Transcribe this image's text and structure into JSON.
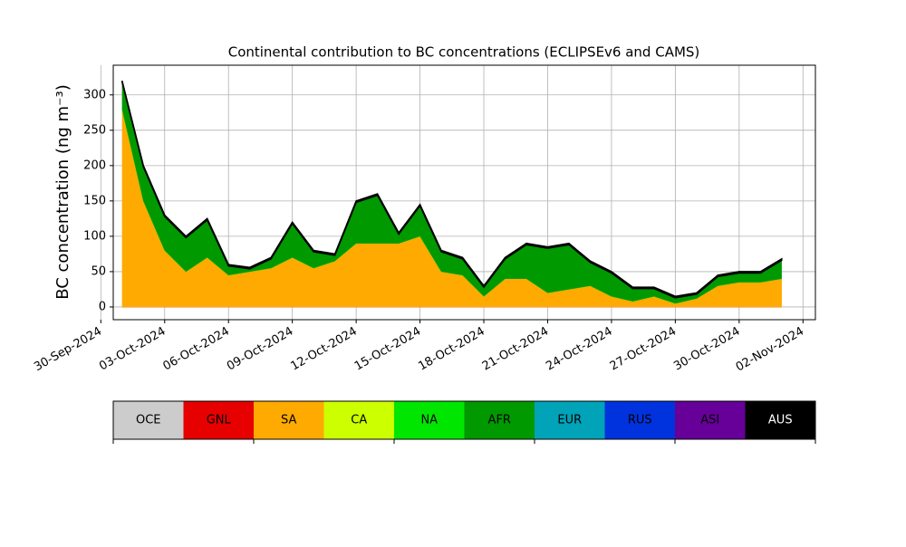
{
  "chart_data": {
    "type": "stacked_area",
    "title": "Continental contribution to BC concentrations (ECLIPSEv6 and CAMS)",
    "ylabel": "BC concentration (ng m⁻³)",
    "x": [
      "2024-10-01",
      "2024-10-02",
      "2024-10-03",
      "2024-10-04",
      "2024-10-05",
      "2024-10-06",
      "2024-10-07",
      "2024-10-08",
      "2024-10-09",
      "2024-10-10",
      "2024-10-11",
      "2024-10-12",
      "2024-10-13",
      "2024-10-14",
      "2024-10-15",
      "2024-10-16",
      "2024-10-17",
      "2024-10-18",
      "2024-10-19",
      "2024-10-20",
      "2024-10-21",
      "2024-10-22",
      "2024-10-23",
      "2024-10-24",
      "2024-10-25",
      "2024-10-26",
      "2024-10-27",
      "2024-10-28",
      "2024-10-29",
      "2024-10-30",
      "2024-10-31",
      "2024-11-01"
    ],
    "series": [
      {
        "name": "OCE",
        "color": "#cccccc",
        "values": [
          0,
          0,
          0,
          0,
          0,
          0,
          0,
          0,
          0,
          0,
          0,
          0,
          0,
          0,
          0,
          0,
          0,
          0,
          0,
          0,
          0,
          0,
          0,
          0,
          0,
          0,
          0,
          0,
          0,
          0,
          0,
          0
        ]
      },
      {
        "name": "GNL",
        "color": "#e60000",
        "values": [
          0,
          0,
          0,
          0,
          0,
          0,
          0,
          0,
          0,
          0,
          0,
          0,
          0,
          0,
          0,
          0,
          0,
          0,
          0,
          0,
          0,
          0,
          0,
          0,
          0,
          0,
          0,
          0,
          0,
          0,
          0,
          0
        ]
      },
      {
        "name": "SA",
        "color": "#ffaa00",
        "values": [
          280,
          150,
          80,
          50,
          70,
          45,
          50,
          55,
          70,
          55,
          65,
          90,
          90,
          90,
          100,
          50,
          45,
          15,
          40,
          40,
          20,
          25,
          30,
          15,
          8,
          15,
          5,
          12,
          30,
          35,
          35,
          40
        ]
      },
      {
        "name": "CA",
        "color": "#ccff00",
        "values": [
          0,
          0,
          0,
          0,
          0,
          0,
          0,
          0,
          0,
          0,
          0,
          0,
          0,
          0,
          0,
          0,
          0,
          0,
          0,
          0,
          0,
          0,
          0,
          0,
          0,
          0,
          0,
          0,
          0,
          0,
          0,
          0
        ]
      },
      {
        "name": "NA",
        "color": "#00e600",
        "values": [
          0,
          0,
          0,
          0,
          0,
          0,
          0,
          0,
          0,
          0,
          0,
          0,
          0,
          0,
          0,
          0,
          0,
          0,
          0,
          0,
          0,
          0,
          0,
          0,
          0,
          0,
          0,
          0,
          0,
          0,
          0,
          0
        ]
      },
      {
        "name": "AFR",
        "color": "#009900",
        "values": [
          38,
          48,
          48,
          48,
          53,
          13,
          4,
          13,
          48,
          23,
          8,
          58,
          68,
          13,
          43,
          28,
          23,
          13,
          28,
          48,
          63,
          63,
          33,
          33,
          18,
          11,
          8,
          6,
          13,
          13,
          13,
          26
        ]
      },
      {
        "name": "EUR",
        "color": "#00a3b8",
        "values": [
          0,
          0,
          0,
          0,
          0,
          0,
          0,
          0,
          0,
          0,
          0,
          0,
          0,
          0,
          0,
          0,
          0,
          0,
          0,
          0,
          0,
          0,
          0,
          0,
          0,
          0,
          0,
          0,
          0,
          0,
          0,
          0
        ]
      },
      {
        "name": "RUS",
        "color": "#0033dd",
        "values": [
          0,
          0,
          0,
          0,
          0,
          0,
          0,
          0,
          0,
          0,
          0,
          0,
          0,
          0,
          0,
          0,
          0,
          0,
          0,
          0,
          0,
          0,
          0,
          0,
          0,
          0,
          0,
          0,
          0,
          0,
          0,
          0
        ]
      },
      {
        "name": "ASI",
        "color": "#660099",
        "values": [
          0,
          0,
          0,
          0,
          0,
          0,
          0,
          0,
          0,
          0,
          0,
          0,
          0,
          0,
          0,
          0,
          0,
          0,
          0,
          0,
          0,
          0,
          0,
          0,
          0,
          0,
          0,
          0,
          0,
          0,
          0,
          0
        ]
      },
      {
        "name": "AUS",
        "color": "#000000",
        "values": [
          2,
          2,
          2,
          2,
          2,
          2,
          2,
          2,
          2,
          2,
          2,
          2,
          2,
          2,
          2,
          2,
          2,
          2,
          2,
          2,
          2,
          2,
          2,
          2,
          2,
          2,
          2,
          2,
          2,
          2,
          2,
          2
        ]
      }
    ],
    "xlim": [
      "2024-09-30T14:00:00Z",
      "2024-11-02T14:00:00Z"
    ],
    "xticks": [
      {
        "value": "2024-09-30",
        "label": "30-Sep-2024"
      },
      {
        "value": "2024-10-03",
        "label": "03-Oct-2024"
      },
      {
        "value": "2024-10-06",
        "label": "06-Oct-2024"
      },
      {
        "value": "2024-10-09",
        "label": "09-Oct-2024"
      },
      {
        "value": "2024-10-12",
        "label": "12-Oct-2024"
      },
      {
        "value": "2024-10-15",
        "label": "15-Oct-2024"
      },
      {
        "value": "2024-10-18",
        "label": "18-Oct-2024"
      },
      {
        "value": "2024-10-21",
        "label": "21-Oct-2024"
      },
      {
        "value": "2024-10-24",
        "label": "24-Oct-2024"
      },
      {
        "value": "2024-10-27",
        "label": "27-Oct-2024"
      },
      {
        "value": "2024-10-30",
        "label": "30-Oct-2024"
      },
      {
        "value": "2024-11-02",
        "label": "02-Nov-2024"
      }
    ],
    "ylim": [
      -18,
      342
    ],
    "yticks": [
      0,
      50,
      100,
      150,
      200,
      250,
      300
    ],
    "grid": true
  }
}
